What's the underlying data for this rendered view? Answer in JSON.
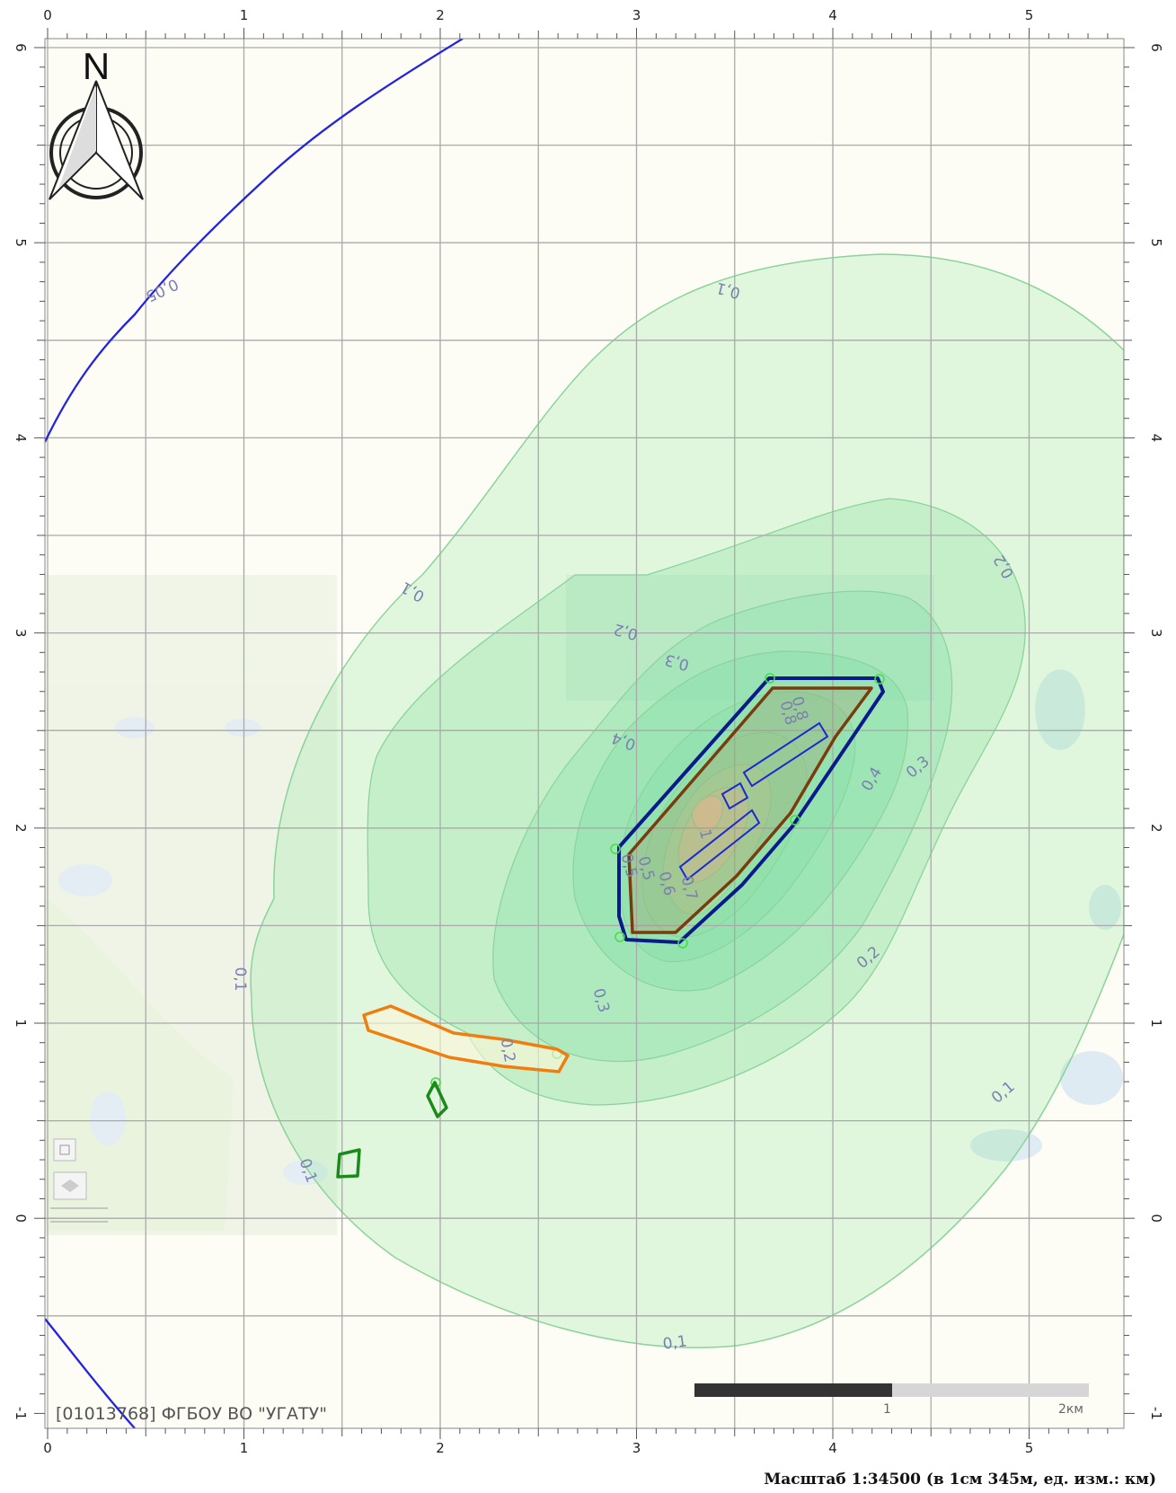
{
  "map": {
    "x_ticks": [
      "0",
      "1",
      "2",
      "3",
      "4",
      "5"
    ],
    "y_ticks": [
      "6",
      "5",
      "4",
      "3",
      "2",
      "1",
      "0",
      "-1"
    ],
    "contour_labels": {
      "c1": "0,05",
      "c2": "0,1",
      "c3": "0,1",
      "c4": "0,1",
      "c5": "0,1",
      "c6": "0,1",
      "c7": "0,1",
      "c8": "0,2",
      "c9": "0,2",
      "c10": "0,2",
      "c11": "0,2",
      "c12": "0,3",
      "c13": "0,3",
      "c14": "0,3",
      "c15": "0,4",
      "c16": "0,4",
      "c17": "0,5",
      "c18": "0,6",
      "c19": "0,7",
      "c20": "0,8",
      "c21": "1",
      "c22": "0,5",
      "c23": "0,8"
    },
    "north_label": "N",
    "org_label": "[01013768] ФГБОУ ВО \"УГАТУ\"",
    "scalebar": {
      "label_mid": "1",
      "label_end": "2км"
    },
    "scale_caption": "Масштаб 1:34500 (в 1см 345м, ед. изм.: км)",
    "colors": {
      "road_line": "#2323e0",
      "zone_outline": "#0b1a8a",
      "inner_outline": "#7a3b10",
      "orange_outline": "#f07d0f",
      "green_outline": "#1a8a1a",
      "contour_fill": "#7be38a"
    }
  }
}
